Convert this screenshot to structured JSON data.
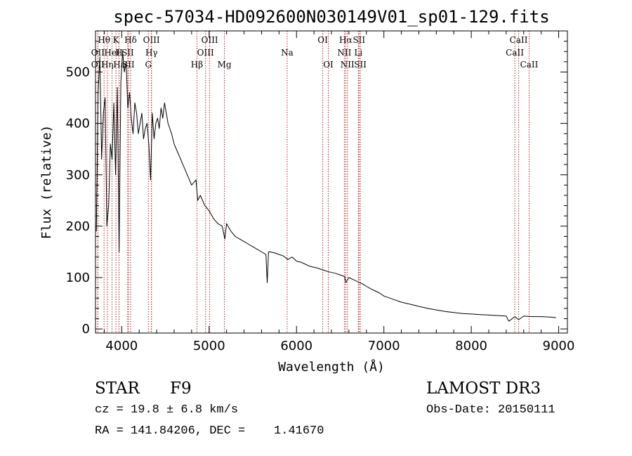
{
  "chart_data": {
    "type": "line",
    "title": "spec-57034-HD092600N030149V01_sp01-129.fits",
    "xlabel": "Wavelength (Å)",
    "ylabel": "Flux (relative)",
    "xlim": [
      3700,
      9100
    ],
    "ylim": [
      -8,
      580
    ],
    "xticks": [
      4000,
      5000,
      6000,
      7000,
      8000,
      9000
    ],
    "yticks": [
      0,
      100,
      200,
      300,
      400,
      500
    ],
    "grid": false,
    "legend": "none",
    "line_color": "#000000",
    "marker_color": "#b22222",
    "series": [
      {
        "x": [
          3710,
          3730,
          3750,
          3770,
          3790,
          3810,
          3830,
          3850,
          3870,
          3890,
          3910,
          3930,
          3950,
          3970,
          3990,
          4010,
          4030,
          4050,
          4070,
          4090,
          4110,
          4130,
          4150,
          4170,
          4190,
          4210,
          4230,
          4250,
          4270,
          4290,
          4310,
          4330,
          4350,
          4370,
          4390,
          4410,
          4430,
          4450,
          4470,
          4490,
          4510,
          4530,
          4550,
          4570,
          4600,
          4650,
          4700,
          4750,
          4800,
          4850,
          4870,
          4900,
          4950,
          5000,
          5050,
          5100,
          5150,
          5180,
          5200,
          5250,
          5300,
          5350,
          5400,
          5450,
          5500,
          5550,
          5600,
          5650,
          5665,
          5680,
          5700,
          5750,
          5800,
          5850,
          5900,
          5950,
          6000,
          6050,
          6100,
          6150,
          6200,
          6250,
          6300,
          6350,
          6400,
          6450,
          6500,
          6550,
          6563,
          6600,
          6650,
          6700,
          6750,
          6800,
          6850,
          6900,
          6950,
          7000,
          7100,
          7200,
          7300,
          7400,
          7500,
          7600,
          7700,
          7800,
          7900,
          8000,
          8100,
          8200,
          8300,
          8400,
          8430,
          8500,
          8542,
          8600,
          8700,
          8800,
          8900,
          8970
        ],
        "y": [
          190,
          460,
          530,
          330,
          420,
          450,
          200,
          240,
          360,
          330,
          440,
          300,
          470,
          150,
          480,
          540,
          500,
          520,
          430,
          460,
          410,
          380,
          440,
          420,
          380,
          400,
          420,
          370,
          390,
          400,
          360,
          290,
          420,
          370,
          400,
          410,
          390,
          430,
          410,
          440,
          420,
          400,
          390,
          380,
          360,
          340,
          320,
          300,
          280,
          290,
          250,
          260,
          240,
          230,
          215,
          205,
          200,
          175,
          205,
          190,
          180,
          175,
          170,
          165,
          160,
          155,
          150,
          145,
          90,
          150,
          150,
          148,
          145,
          142,
          135,
          140,
          132,
          130,
          126,
          122,
          120,
          118,
          115,
          112,
          110,
          108,
          105,
          102,
          90,
          100,
          96,
          92,
          88,
          83,
          78,
          74,
          70,
          64,
          58,
          52,
          48,
          44,
          40,
          37,
          34,
          32,
          30,
          29,
          28,
          27,
          26,
          25,
          15,
          24,
          18,
          25,
          24,
          24,
          23,
          22
        ]
      }
    ],
    "lines": [
      {
        "name": "Hθ",
        "x": 3798,
        "row": 1
      },
      {
        "name": "OII",
        "x": 3727,
        "row": 2
      },
      {
        "name": "OII",
        "x": 3727,
        "row": 3
      },
      {
        "name": "Hη",
        "x": 3835,
        "row": 3
      },
      {
        "name": "HeI",
        "x": 3889,
        "row": 2
      },
      {
        "name": "K",
        "x": 3934,
        "row": 1
      },
      {
        "name": "H",
        "x": 3969,
        "row": 2
      },
      {
        "name": "Hε",
        "x": 3970,
        "row": 3
      },
      {
        "name": "SII",
        "x": 4069,
        "row": 2
      },
      {
        "name": "Hδ",
        "x": 4102,
        "row": 1
      },
      {
        "name": "SII",
        "x": 4076,
        "row": 3
      },
      {
        "name": "OIII",
        "x": 4340,
        "row": 1
      },
      {
        "name": "Hγ",
        "x": 4341,
        "row": 2
      },
      {
        "name": "G",
        "x": 4305,
        "row": 3
      },
      {
        "name": "Hβ",
        "x": 4861,
        "row": 3
      },
      {
        "name": "OIII",
        "x": 4959,
        "row": 2
      },
      {
        "name": "OIII",
        "x": 5007,
        "row": 1
      },
      {
        "name": "Mg",
        "x": 5175,
        "row": 3
      },
      {
        "name": "Na",
        "x": 5893,
        "row": 2
      },
      {
        "name": "OI",
        "x": 6300,
        "row": 1
      },
      {
        "name": "OI",
        "x": 6364,
        "row": 3
      },
      {
        "name": "Hα",
        "x": 6563,
        "row": 1
      },
      {
        "name": "NII",
        "x": 6548,
        "row": 2
      },
      {
        "name": "NII",
        "x": 6583,
        "row": 3
      },
      {
        "name": "SII",
        "x": 6716,
        "row": 1
      },
      {
        "name": "Li",
        "x": 6708,
        "row": 2
      },
      {
        "name": "SII",
        "x": 6731,
        "row": 3
      },
      {
        "name": "CaII",
        "x": 8542,
        "row": 1
      },
      {
        "name": "CaII",
        "x": 8498,
        "row": 2
      },
      {
        "name": "CaII",
        "x": 8662,
        "row": 3
      }
    ]
  },
  "info": {
    "object_type": "STAR",
    "subclass": "F9",
    "survey": "LAMOST DR3",
    "cz": "cz = 19.8 ± 6.8 km/s",
    "obs_date": "Obs-Date: 20150111",
    "coords": "RA = 141.84206, DEC =    1.41670"
  }
}
